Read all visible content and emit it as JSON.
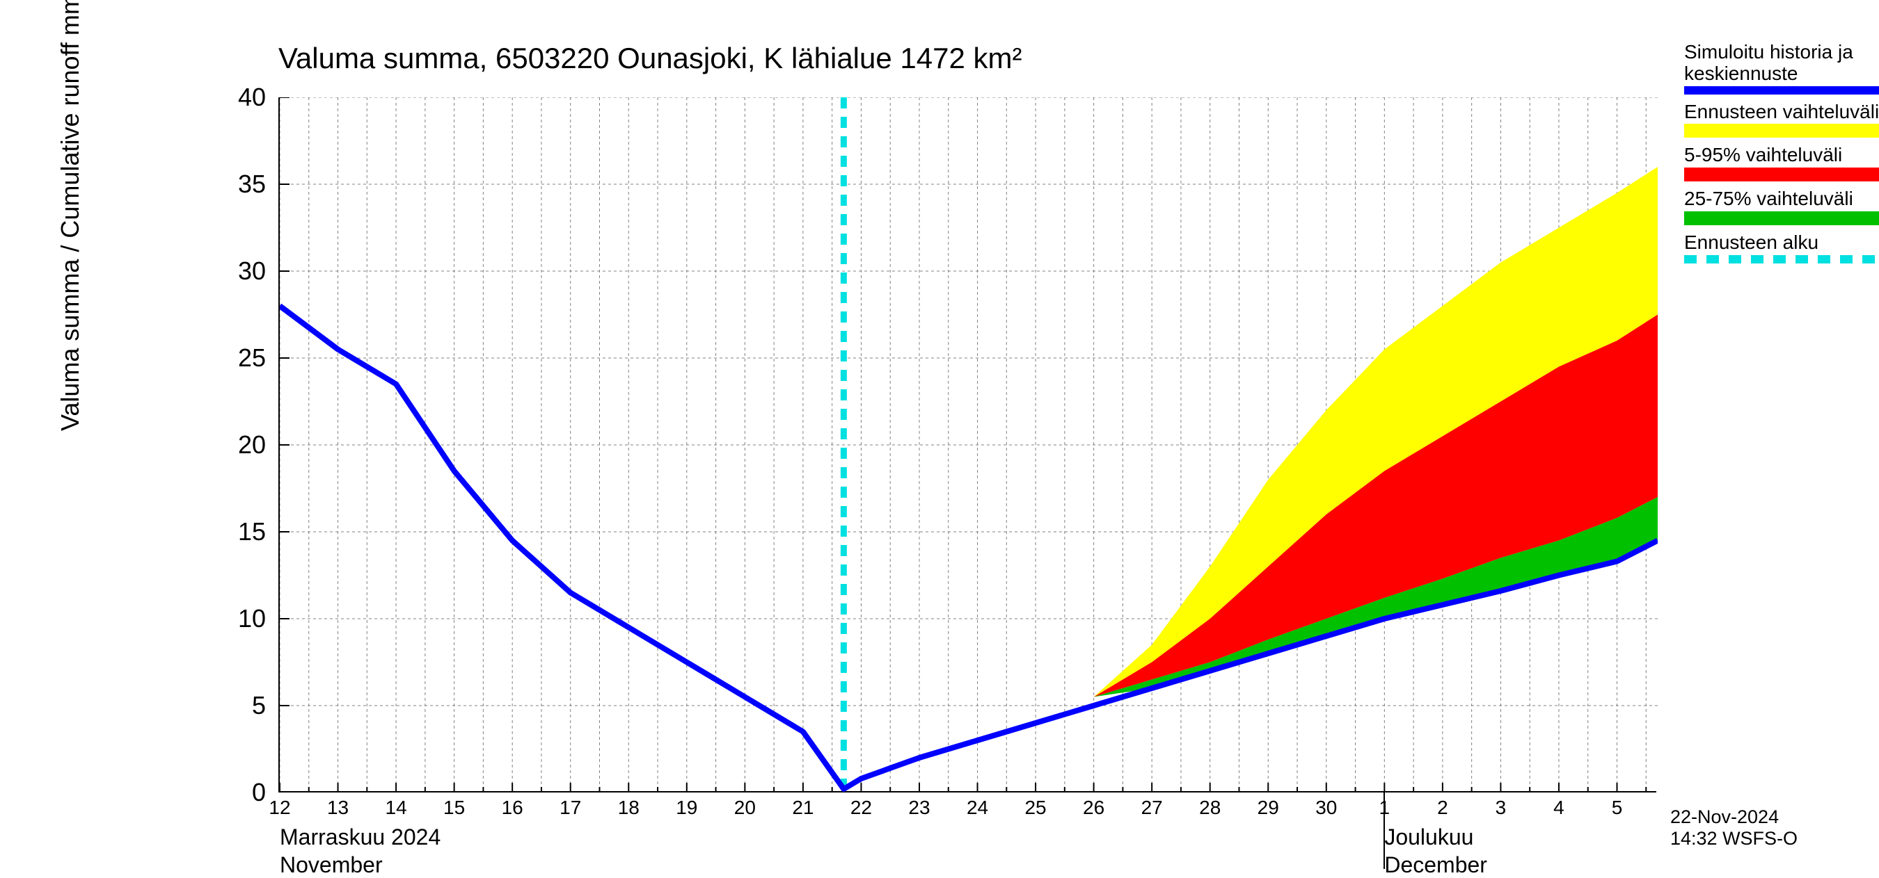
{
  "chart": {
    "type": "line-area-forecast",
    "title": "Valuma summa, 6503220 Ounasjoki, K lähialue 1472 km²",
    "y_axis_label": "Valuma summa / Cumulative runoff    mm",
    "title_fontsize": 42,
    "axis_label_fontsize": 36,
    "tick_fontsize": 28,
    "background_color": "#ffffff",
    "grid_color": "#808080",
    "grid_dash": "4 4",
    "axis_color": "#000000",
    "ylim": [
      0,
      40
    ],
    "ytick_step": 5,
    "yticks": [
      0,
      5,
      10,
      15,
      20,
      25,
      30,
      35,
      40
    ],
    "x_days": [
      12,
      13,
      14,
      15,
      16,
      17,
      18,
      19,
      20,
      21,
      22,
      23,
      24,
      25,
      26,
      27,
      28,
      29,
      30,
      1,
      2,
      3,
      4,
      5
    ],
    "x_minor_per_day": 2,
    "month_labels": [
      {
        "fi": "Marraskuu 2024",
        "en": "November",
        "x_index": 0
      },
      {
        "fi": "Joulukuu",
        "en": "December",
        "x_index": 19
      }
    ],
    "month_divider_x_index": 19,
    "forecast_start_x": 21.7,
    "series": {
      "blue_line": {
        "color": "#0000ff",
        "width": 8,
        "x": [
          12,
          13,
          14,
          15,
          16,
          17,
          18,
          19,
          20,
          21,
          21.7,
          22,
          23,
          24,
          25,
          26,
          27,
          28,
          29,
          30,
          31,
          32,
          33,
          34,
          35,
          35.7
        ],
        "y": [
          28,
          25.5,
          23.5,
          18.5,
          14.5,
          11.5,
          9.5,
          7.5,
          5.5,
          3.5,
          0.2,
          0.8,
          2.0,
          3.0,
          4.0,
          5.0,
          6.0,
          7.0,
          8.0,
          9.0,
          10.0,
          10.8,
          11.6,
          12.5,
          13.3,
          14.5
        ]
      },
      "yellow_band": {
        "color": "#ffff00",
        "x": [
          26,
          27,
          28,
          29,
          30,
          31,
          32,
          33,
          34,
          35,
          35.7
        ],
        "upper": [
          5.5,
          8.5,
          13.0,
          18.0,
          22.0,
          25.5,
          28.0,
          30.5,
          32.5,
          34.5,
          36.0
        ],
        "lower": [
          5.5,
          7.5,
          10.0,
          13.0,
          16.0,
          18.5,
          20.5,
          22.5,
          24.5,
          26.0,
          27.5
        ]
      },
      "red_band": {
        "color": "#ff0000",
        "x": [
          26,
          27,
          28,
          29,
          30,
          31,
          32,
          33,
          34,
          35,
          35.7
        ],
        "upper": [
          5.5,
          7.5,
          10.0,
          13.0,
          16.0,
          18.5,
          20.5,
          22.5,
          24.5,
          26.0,
          27.5
        ],
        "lower": [
          5.5,
          6.5,
          7.5,
          8.8,
          10.0,
          11.2,
          12.3,
          13.5,
          14.5,
          15.8,
          17.0
        ]
      },
      "green_band": {
        "color": "#00c000",
        "x": [
          26,
          27,
          28,
          29,
          30,
          31,
          32,
          33,
          34,
          35,
          35.7
        ],
        "upper": [
          5.5,
          6.5,
          7.5,
          8.8,
          10.0,
          11.2,
          12.3,
          13.5,
          14.5,
          15.8,
          17.0
        ],
        "lower": [
          5.5,
          6.0,
          7.0,
          8.0,
          9.0,
          10.0,
          10.8,
          11.6,
          12.5,
          13.3,
          14.5
        ]
      },
      "forecast_vline": {
        "color": "#00e0e0",
        "width": 9,
        "dash": "16 12",
        "x": 21.7
      }
    }
  },
  "legend": {
    "items": [
      {
        "label": "Simuloitu historia ja keskiennuste",
        "type": "line",
        "color": "#0000ff"
      },
      {
        "label": "Ennusteen vaihteluväli",
        "type": "swatch",
        "color": "#ffff00"
      },
      {
        "label": "5-95% vaihteluväli",
        "type": "swatch",
        "color": "#ff0000"
      },
      {
        "label": "25-75% vaihteluväli",
        "type": "swatch",
        "color": "#00c000"
      },
      {
        "label": "Ennusteen alku",
        "type": "dashline",
        "color": "#00e0e0"
      }
    ]
  },
  "timestamp": "22-Nov-2024 14:32 WSFS-O"
}
